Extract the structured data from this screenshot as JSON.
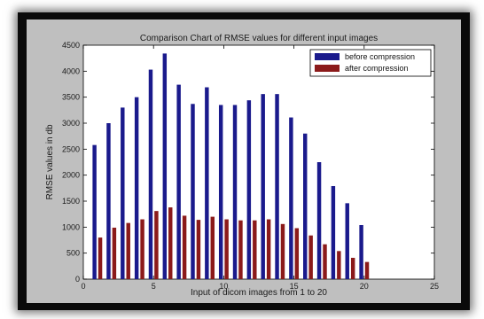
{
  "chart_data": {
    "type": "bar",
    "title": "Comparison Chart of RMSE values for different input images",
    "xlabel": "Input of dicom images from 1 to 20",
    "ylabel": "RMSE values in db",
    "xlim": [
      0,
      25
    ],
    "ylim": [
      0,
      4500
    ],
    "xticks": [
      0,
      5,
      10,
      15,
      20,
      25
    ],
    "yticks": [
      0,
      500,
      1000,
      1500,
      2000,
      2500,
      3000,
      3500,
      4000,
      4500
    ],
    "x": [
      1,
      2,
      3,
      4,
      5,
      6,
      7,
      8,
      9,
      10,
      11,
      12,
      13,
      14,
      15,
      16,
      17,
      18,
      19,
      20
    ],
    "legend_position": "top-right",
    "grid": false,
    "series": [
      {
        "name": "before compression",
        "color": "#1a1a8c",
        "values": [
          2580,
          3000,
          3300,
          3500,
          4030,
          4340,
          3740,
          3370,
          3690,
          3350,
          3350,
          3440,
          3560,
          3560,
          3110,
          2800,
          2250,
          1790,
          1460,
          1040
        ]
      },
      {
        "name": "after compression",
        "color": "#8b1a1a",
        "values": [
          800,
          990,
          1080,
          1150,
          1310,
          1380,
          1220,
          1140,
          1200,
          1150,
          1130,
          1130,
          1150,
          1060,
          980,
          840,
          670,
          540,
          410,
          330
        ]
      }
    ]
  }
}
